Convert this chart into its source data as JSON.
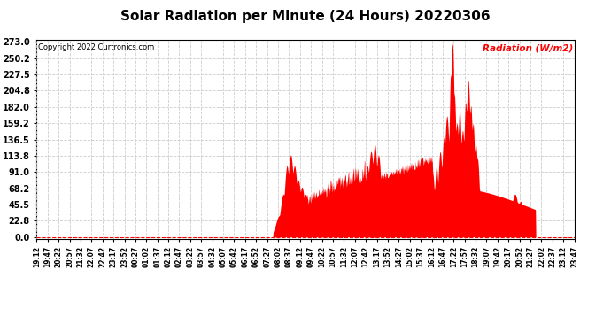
{
  "title": "Solar Radiation per Minute (24 Hours) 20220306",
  "copyright": "Copyright 2022 Curtronics.com",
  "ylabel": "Radiation (W/m2)",
  "ylabel_color": "#ff0000",
  "fill_color": "#ff0000",
  "line_color": "#ff0000",
  "background_color": "#ffffff",
  "grid_color": "#cccccc",
  "title_fontsize": 11,
  "yticks": [
    0.0,
    22.8,
    45.5,
    68.2,
    91.0,
    113.8,
    136.5,
    159.2,
    182.0,
    204.8,
    227.5,
    250.2,
    273.0
  ],
  "ymax": 273.0,
  "ymin": 0.0,
  "xtick_labels": [
    "19:12",
    "19:47",
    "20:22",
    "20:57",
    "21:32",
    "22:07",
    "22:42",
    "23:17",
    "23:52",
    "00:27",
    "01:02",
    "01:37",
    "02:12",
    "02:47",
    "03:22",
    "03:57",
    "04:32",
    "05:07",
    "05:42",
    "06:17",
    "06:52",
    "07:27",
    "08:02",
    "08:37",
    "09:12",
    "09:47",
    "10:22",
    "10:57",
    "11:32",
    "12:07",
    "12:42",
    "13:17",
    "13:52",
    "14:27",
    "15:02",
    "15:37",
    "16:12",
    "16:47",
    "17:22",
    "17:57",
    "18:32",
    "19:07",
    "19:42",
    "20:17",
    "20:52",
    "21:27",
    "22:02",
    "22:37",
    "23:12",
    "23:47"
  ],
  "num_points": 1440,
  "sunrise_idx": 633,
  "sunset_idx": 1335,
  "peak_idx": 1120
}
